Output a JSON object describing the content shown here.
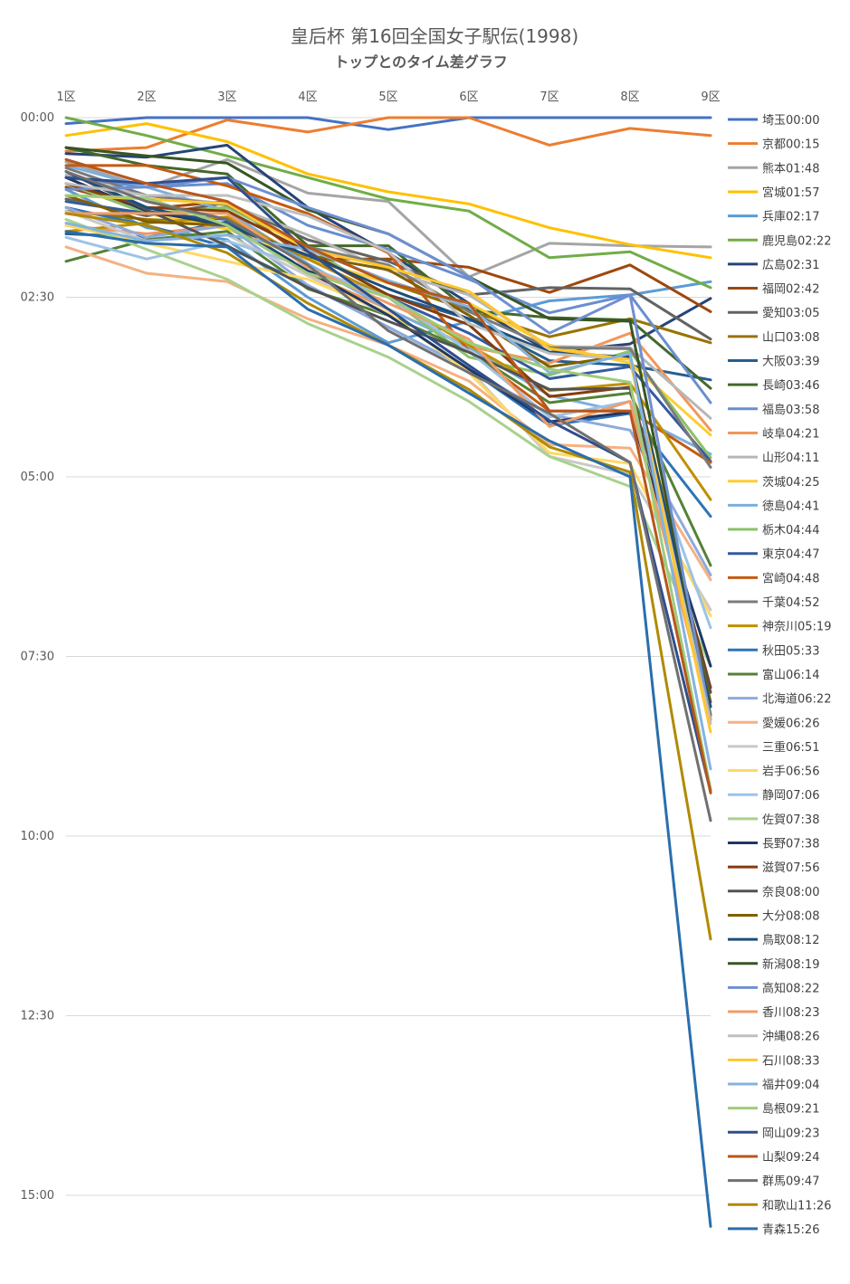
{
  "chart_data": {
    "type": "line",
    "title": "皇后杯 第16回全国女子駅伝(1998)",
    "subtitle": "トップとのタイム差グラフ",
    "xlabel": "",
    "ylabel": "",
    "x": [
      "1区",
      "2区",
      "3区",
      "4区",
      "5区",
      "6区",
      "7区",
      "8区",
      "9区"
    ],
    "y_ticks": [
      "00:00",
      "02:30",
      "05:00",
      "07:30",
      "10:00",
      "12:30",
      "15:00"
    ],
    "ylim_seconds": [
      0,
      930
    ],
    "y_inverted": true,
    "grid": true,
    "legend_position": "right",
    "series": [
      {
        "name": "埼玉00:00",
        "color": "#4472C4",
        "values": [
          5,
          0,
          0,
          0,
          10,
          0,
          0,
          0,
          0
        ]
      },
      {
        "name": "京都00:15",
        "color": "#ED7D31",
        "values": [
          28,
          25,
          2,
          12,
          0,
          0,
          23,
          9,
          15
        ]
      },
      {
        "name": "熊本01:48",
        "color": "#A5A5A5",
        "values": [
          37,
          58,
          35,
          63,
          70,
          133,
          105,
          107,
          108
        ]
      },
      {
        "name": "宮城01:57",
        "color": "#FFC000",
        "values": [
          15,
          5,
          20,
          47,
          62,
          72,
          92,
          106,
          117
        ]
      },
      {
        "name": "兵庫02:17",
        "color": "#5B9BD5",
        "values": [
          60,
          92,
          102,
          150,
          188,
          170,
          153,
          148,
          137
        ]
      },
      {
        "name": "鹿児島02:22",
        "color": "#70AD47",
        "values": [
          0,
          15,
          32,
          50,
          68,
          78,
          117,
          112,
          142
        ]
      },
      {
        "name": "広島02:31",
        "color": "#264478",
        "values": [
          30,
          33,
          23,
          75,
          113,
          155,
          196,
          189,
          151
        ]
      },
      {
        "name": "福岡02:42",
        "color": "#9E480E",
        "values": [
          58,
          76,
          70,
          118,
          118,
          125,
          146,
          123,
          162
        ]
      },
      {
        "name": "愛知03:05",
        "color": "#636363",
        "values": [
          68,
          82,
          71,
          102,
          120,
          148,
          142,
          143,
          185
        ]
      },
      {
        "name": "山口03:08",
        "color": "#997300",
        "values": [
          78,
          85,
          88,
          118,
          138,
          161,
          183,
          168,
          188
        ]
      },
      {
        "name": "大阪03:39",
        "color": "#255E91",
        "values": [
          97,
          100,
          87,
          128,
          148,
          168,
          203,
          207,
          219
        ]
      },
      {
        "name": "長崎03:46",
        "color": "#43682B",
        "values": [
          25,
          40,
          47,
          107,
          107,
          161,
          167,
          169,
          226
        ]
      },
      {
        "name": "福島03:58",
        "color": "#698ED0",
        "values": [
          50,
          58,
          55,
          90,
          110,
          135,
          163,
          148,
          238
        ]
      },
      {
        "name": "岐阜04:21",
        "color": "#F1975A",
        "values": [
          90,
          97,
          90,
          130,
          160,
          191,
          205,
          180,
          261
        ]
      },
      {
        "name": "山形04:11",
        "color": "#B7B7B7",
        "values": [
          48,
          65,
          72,
          98,
          128,
          148,
          191,
          192,
          251
        ]
      },
      {
        "name": "茨城04:25",
        "color": "#FFCD33",
        "values": [
          70,
          80,
          93,
          118,
          138,
          155,
          190,
          205,
          265
        ]
      },
      {
        "name": "徳島04:41",
        "color": "#7CAFDD",
        "values": [
          40,
          58,
          78,
          122,
          160,
          192,
          232,
          247,
          281
        ]
      },
      {
        "name": "栃木04:44",
        "color": "#8CC168",
        "values": [
          55,
          80,
          75,
          108,
          150,
          200,
          215,
          195,
          284
        ]
      },
      {
        "name": "東京04:47",
        "color": "#335AA1",
        "values": [
          70,
          80,
          85,
          118,
          150,
          180,
          218,
          208,
          287
        ]
      },
      {
        "name": "宮崎04:48",
        "color": "#C55A11",
        "values": [
          40,
          40,
          57,
          80,
          113,
          195,
          245,
          245,
          288
        ]
      },
      {
        "name": "千葉04:52",
        "color": "#7B7B7B",
        "values": [
          42,
          65,
          73,
          108,
          123,
          162,
          192,
          193,
          292
        ]
      },
      {
        "name": "神奈川05:19",
        "color": "#BF9000",
        "values": [
          95,
          88,
          83,
          118,
          150,
          190,
          228,
          222,
          319
        ]
      },
      {
        "name": "秋田05:33",
        "color": "#2E75B6",
        "values": [
          75,
          90,
          108,
          140,
          175,
          210,
          257,
          247,
          333
        ]
      },
      {
        "name": "富山06:14",
        "color": "#548235",
        "values": [
          120,
          102,
          95,
          143,
          165,
          195,
          238,
          230,
          374
        ]
      },
      {
        "name": "北海道06:22",
        "color": "#8FAADC",
        "values": [
          75,
          100,
          90,
          140,
          175,
          210,
          248,
          261,
          382
        ]
      },
      {
        "name": "愛媛06:26",
        "color": "#F4B183",
        "values": [
          108,
          130,
          137,
          168,
          190,
          220,
          273,
          276,
          386
        ]
      },
      {
        "name": "三重06:51",
        "color": "#C9C9C9",
        "values": [
          78,
          103,
          98,
          132,
          165,
          210,
          283,
          298,
          411
        ]
      },
      {
        "name": "岩手06:56",
        "color": "#FFD966",
        "values": [
          90,
          105,
          120,
          135,
          163,
          213,
          280,
          289,
          416
        ]
      },
      {
        "name": "静岡07:06",
        "color": "#9DC3E6",
        "values": [
          100,
          118,
          103,
          125,
          150,
          195,
          250,
          237,
          426
        ]
      },
      {
        "name": "佐賀07:38",
        "color": "#A9D18E",
        "values": [
          85,
          110,
          135,
          172,
          200,
          237,
          283,
          308,
          458
        ]
      },
      {
        "name": "長野07:38",
        "color": "#203864",
        "values": [
          50,
          78,
          90,
          128,
          165,
          210,
          254,
          246,
          458
        ]
      },
      {
        "name": "滋賀07:56",
        "color": "#843C0C",
        "values": [
          55,
          75,
          78,
          112,
          148,
          173,
          233,
          225,
          476
        ]
      },
      {
        "name": "奈良08:00",
        "color": "#525252",
        "values": [
          45,
          77,
          107,
          142,
          170,
          196,
          227,
          226,
          480
        ]
      },
      {
        "name": "大分08:08",
        "color": "#7F6000",
        "values": [
          65,
          87,
          90,
          115,
          127,
          165,
          208,
          198,
          488
        ]
      },
      {
        "name": "鳥取08:12",
        "color": "#1F4E79",
        "values": [
          45,
          75,
          90,
          115,
          143,
          168,
          196,
          200,
          492
        ]
      },
      {
        "name": "新潟08:19",
        "color": "#375623",
        "values": [
          25,
          32,
          38,
          77,
          97,
          133,
          168,
          170,
          499
        ]
      },
      {
        "name": "高知08:22",
        "color": "#6F8FD1",
        "values": [
          60,
          58,
          50,
          75,
          97,
          133,
          180,
          148,
          502
        ]
      },
      {
        "name": "香川08:23",
        "color": "#F09D67",
        "values": [
          80,
          80,
          80,
          125,
          155,
          185,
          258,
          237,
          503
        ]
      },
      {
        "name": "沖縄08:26",
        "color": "#BFBFBF",
        "values": [
          55,
          65,
          65,
          82,
          112,
          172,
          197,
          202,
          506
        ]
      },
      {
        "name": "石川08:33",
        "color": "#FFC72F",
        "values": [
          65,
          68,
          72,
          110,
          125,
          145,
          193,
          202,
          513
        ]
      },
      {
        "name": "福井09:04",
        "color": "#85B3DF",
        "values": [
          88,
          103,
          98,
          110,
          136,
          158,
          213,
          197,
          544
        ]
      },
      {
        "name": "島根09:21",
        "color": "#9FCB7C",
        "values": [
          65,
          67,
          90,
          130,
          150,
          188,
          210,
          221,
          561
        ]
      },
      {
        "name": "岡山09:23",
        "color": "#2F4E8D",
        "values": [
          50,
          55,
          50,
          112,
          160,
          207,
          253,
          288,
          563
        ]
      },
      {
        "name": "山梨09:24",
        "color": "#B8561A",
        "values": [
          35,
          55,
          70,
          108,
          138,
          155,
          245,
          245,
          564
        ]
      },
      {
        "name": "群馬09:47",
        "color": "#707070",
        "values": [
          45,
          70,
          85,
          123,
          178,
          213,
          247,
          288,
          587
        ]
      },
      {
        "name": "和歌山11:26",
        "color": "#B08A00",
        "values": [
          80,
          90,
          113,
          155,
          190,
          227,
          275,
          296,
          686
        ]
      },
      {
        "name": "青森15:26",
        "color": "#2A6EAD",
        "values": [
          95,
          105,
          108,
          160,
          190,
          230,
          270,
          300,
          926
        ]
      }
    ]
  }
}
